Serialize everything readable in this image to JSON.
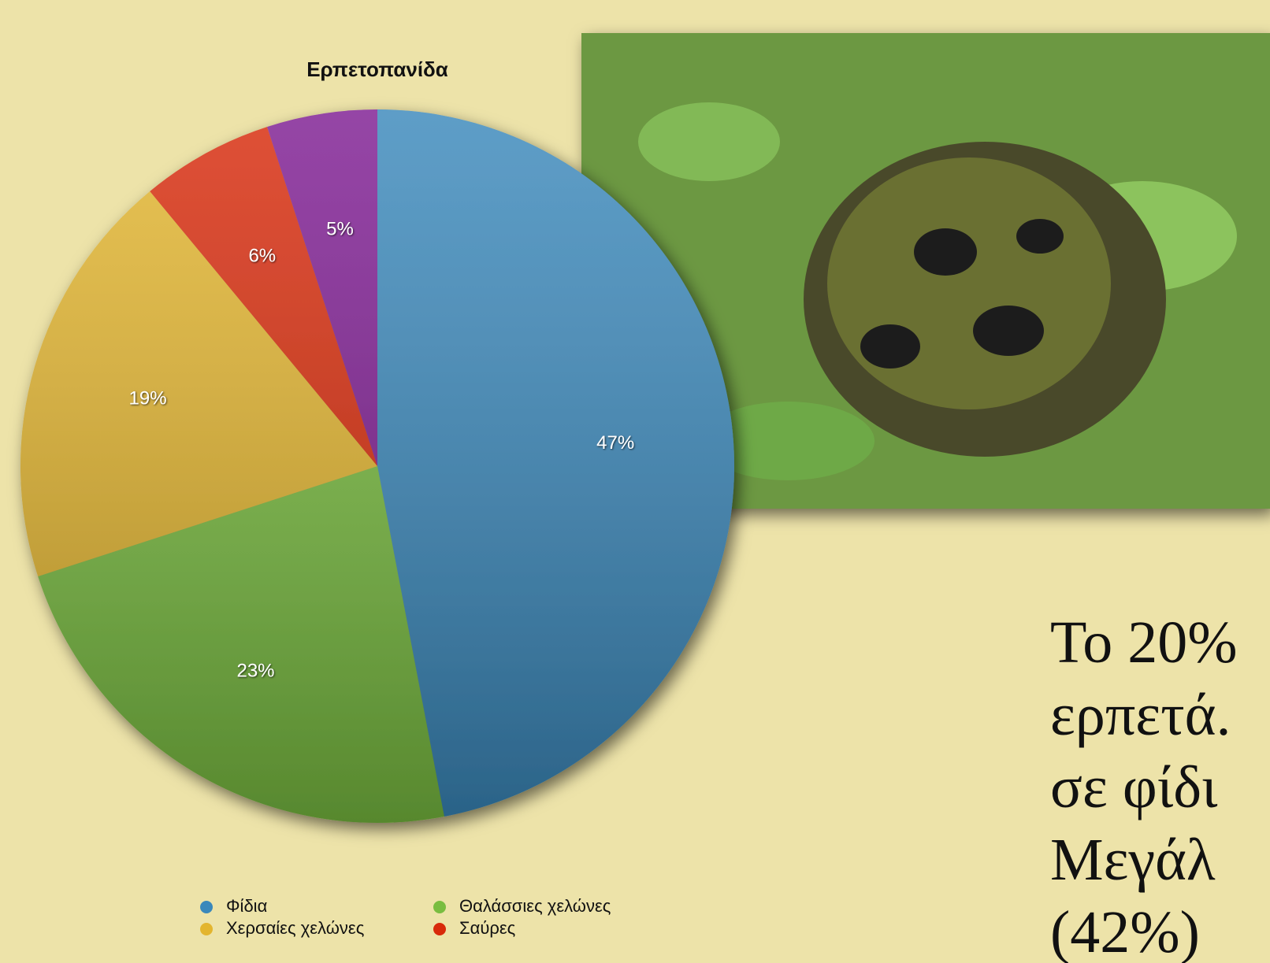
{
  "chart_data": {
    "type": "pie",
    "title": "Ερπετοπανίδα",
    "categories": [
      "Φίδια",
      "Θαλάσσιες χελώνες",
      "Χερσαίες χελώνες",
      "Σαύρες",
      null
    ],
    "values": [
      47,
      23,
      19,
      6,
      5
    ],
    "value_labels": [
      "47%",
      "23%",
      "19%",
      "6%",
      "5%"
    ],
    "colors": [
      "#3a88bb",
      "#79bd40",
      "#e3b52e",
      "#d82a0a",
      "#7e1c92"
    ],
    "legend": "bottom"
  },
  "text": {
    "lines": [
      "Το  20%",
      "ερπετά.",
      "σε φίδι",
      "Μεγάλ",
      "(42%)"
    ]
  }
}
